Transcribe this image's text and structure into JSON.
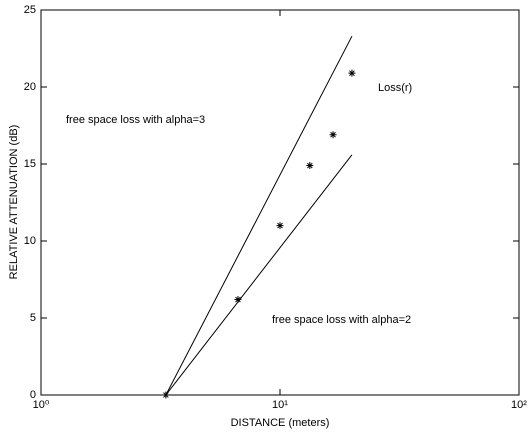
{
  "chart_data": {
    "type": "line",
    "xlabel": "DISTANCE (meters)",
    "ylabel": "RELATIVE ATTENUATION (dB)",
    "xscale": "log",
    "xlim": [
      1,
      100
    ],
    "xticks": [
      {
        "value": 1,
        "label": "10⁰"
      },
      {
        "value": 10,
        "label": "10¹"
      },
      {
        "value": 100,
        "label": "10²"
      }
    ],
    "ylim": [
      0,
      25
    ],
    "yticks": [
      0,
      5,
      10,
      15,
      20,
      25
    ],
    "grid": false,
    "annotations": [
      "Loss(r)",
      "free space loss with alpha=3",
      "free space loss with alpha=2"
    ],
    "series": [
      {
        "type": "line",
        "color": "#000000",
        "x": [
          3.33,
          20
        ],
        "values": [
          0,
          23.3
        ]
      },
      {
        "type": "line",
        "color": "#000000",
        "x": [
          3.33,
          20
        ],
        "values": [
          0,
          15.6
        ]
      },
      {
        "type": "scatter",
        "color": "#000000",
        "x": [
          3.33,
          6.67,
          10,
          13.33,
          16.67,
          20
        ],
        "values": [
          0,
          6.2,
          11.0,
          14.9,
          16.9,
          20.9
        ]
      }
    ]
  }
}
